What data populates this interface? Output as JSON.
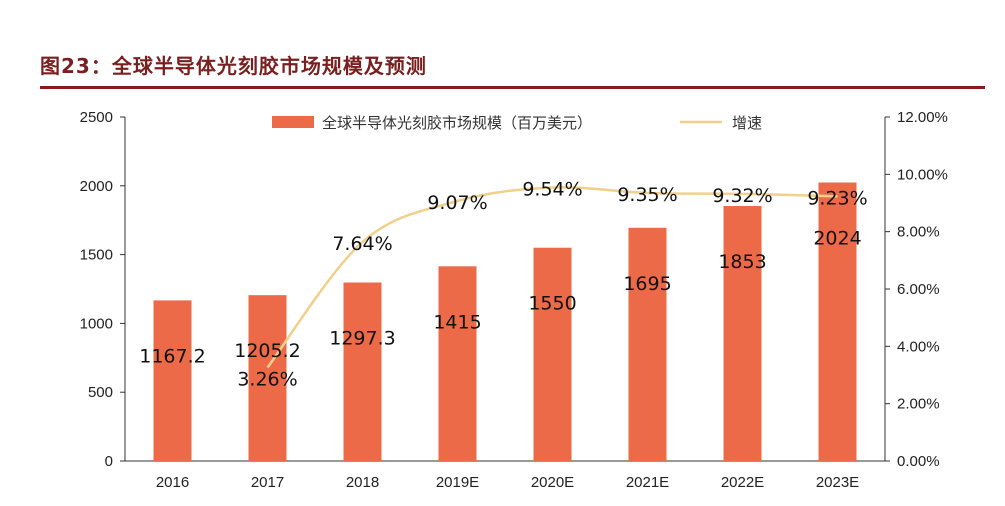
{
  "title": "图23：全球半导体光刻胶市场规模及预测",
  "colors": {
    "title": "#7a1f1f",
    "rule": "#8b1a1a",
    "bar": "#ec6a47",
    "line": "#f1d08c",
    "axis": "#333333"
  },
  "chart_data": {
    "type": "bar",
    "categories": [
      "2016",
      "2017",
      "2018",
      "2019E",
      "2020E",
      "2021E",
      "2022E",
      "2023E"
    ],
    "series": [
      {
        "name": "全球半导体光刻胶市场规模（百万美元）",
        "type": "bar",
        "axis": "left",
        "values": [
          1167.2,
          1205.2,
          1297.3,
          1415,
          1550,
          1695,
          1853,
          2024
        ],
        "labels": [
          "1167.2",
          "1205.2",
          "1297.3",
          "1415",
          "1550",
          "1695",
          "1853",
          "2024"
        ]
      },
      {
        "name": "增速",
        "type": "line",
        "axis": "right",
        "values": [
          null,
          3.26,
          7.64,
          9.07,
          9.54,
          9.35,
          9.32,
          9.23
        ],
        "labels": [
          "",
          "3.26%",
          "7.64%",
          "9.07%",
          "9.54%",
          "9.35%",
          "9.32%",
          "9.23%"
        ]
      }
    ],
    "y_left": {
      "min": 0,
      "max": 2500,
      "ticks": [
        "0",
        "500",
        "1000",
        "1500",
        "2000",
        "2500"
      ]
    },
    "y_right": {
      "min": 0,
      "max": 12,
      "ticks": [
        "0.00%",
        "2.00%",
        "4.00%",
        "6.00%",
        "8.00%",
        "10.00%",
        "12.00%"
      ]
    },
    "legend_position": "top",
    "grid": false
  }
}
